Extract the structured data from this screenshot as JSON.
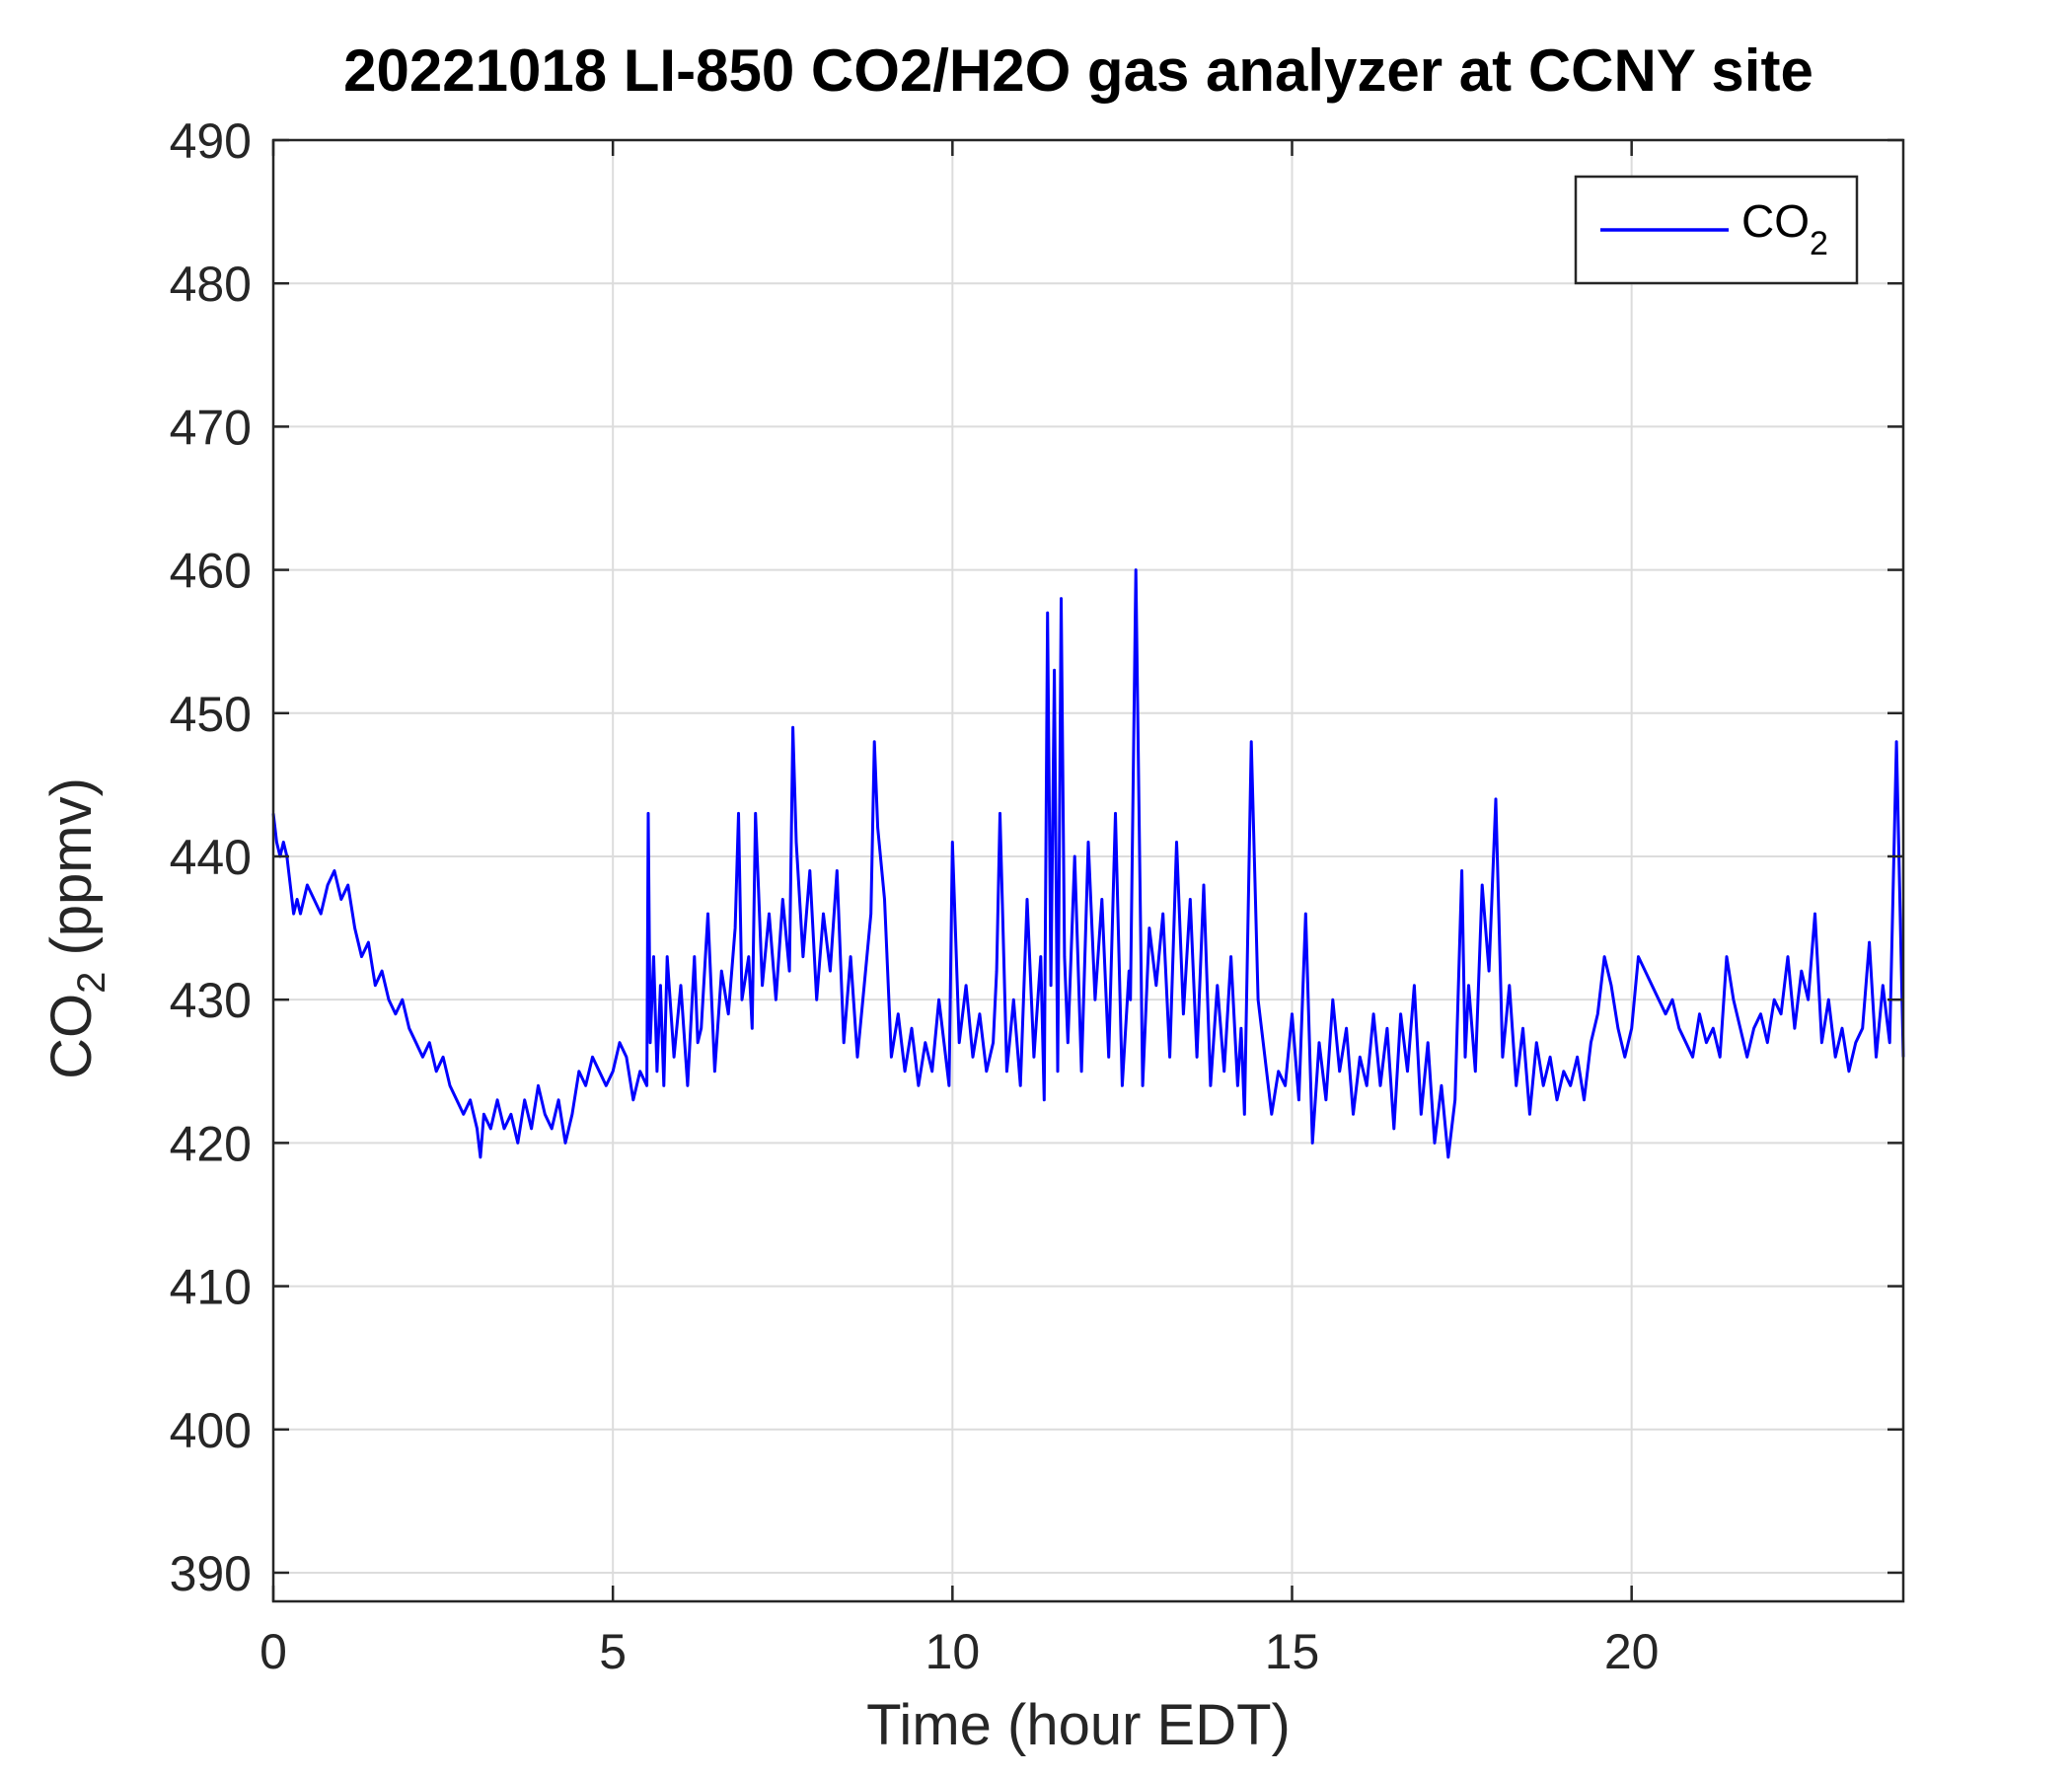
{
  "chart_data": {
    "type": "line",
    "title": "20221018 LI-850 CO2/H2O gas analyzer at CCNY site",
    "xlabel": "Time (hour EDT)",
    "ylabel": {
      "main": "CO",
      "subscript": "2",
      "suffix": " (ppmv)"
    },
    "xlim": [
      0,
      24
    ],
    "ylim": [
      388,
      490
    ],
    "xticks": [
      0,
      5,
      10,
      15,
      20
    ],
    "yticks": [
      390,
      400,
      410,
      420,
      430,
      440,
      450,
      460,
      470,
      480,
      490
    ],
    "grid": true,
    "legend": {
      "placement": "top-right",
      "entries": [
        {
          "name": "CO",
          "subscript": "2",
          "color": "#0000ff"
        }
      ]
    },
    "series": [
      {
        "name": "CO2",
        "color": "#0000ff",
        "x": [
          0,
          0.05,
          0.1,
          0.15,
          0.2,
          0.25,
          0.3,
          0.35,
          0.4,
          0.5,
          0.6,
          0.7,
          0.8,
          0.9,
          1.0,
          1.1,
          1.2,
          1.3,
          1.4,
          1.5,
          1.6,
          1.7,
          1.8,
          1.9,
          2.0,
          2.1,
          2.2,
          2.3,
          2.4,
          2.5,
          2.6,
          2.7,
          2.8,
          2.9,
          3.0,
          3.05,
          3.1,
          3.2,
          3.3,
          3.4,
          3.5,
          3.6,
          3.7,
          3.8,
          3.9,
          4.0,
          4.1,
          4.2,
          4.3,
          4.4,
          4.5,
          4.6,
          4.7,
          4.8,
          4.9,
          5.0,
          5.1,
          5.2,
          5.3,
          5.4,
          5.5,
          5.52,
          5.55,
          5.6,
          5.65,
          5.7,
          5.75,
          5.8,
          5.9,
          6.0,
          6.1,
          6.2,
          6.25,
          6.3,
          6.4,
          6.5,
          6.6,
          6.7,
          6.8,
          6.85,
          6.9,
          7.0,
          7.05,
          7.1,
          7.2,
          7.3,
          7.4,
          7.5,
          7.6,
          7.65,
          7.7,
          7.8,
          7.9,
          8.0,
          8.1,
          8.2,
          8.3,
          8.4,
          8.5,
          8.6,
          8.7,
          8.8,
          8.85,
          8.9,
          9.0,
          9.1,
          9.2,
          9.3,
          9.4,
          9.5,
          9.6,
          9.7,
          9.8,
          9.9,
          9.95,
          10.0,
          10.1,
          10.2,
          10.3,
          10.4,
          10.5,
          10.6,
          10.65,
          10.7,
          10.8,
          10.9,
          11.0,
          11.1,
          11.2,
          11.3,
          11.35,
          11.4,
          11.45,
          11.5,
          11.55,
          11.6,
          11.65,
          11.7,
          11.8,
          11.9,
          12.0,
          12.1,
          12.2,
          12.3,
          12.4,
          12.5,
          12.6,
          12.62,
          12.7,
          12.8,
          12.9,
          13.0,
          13.1,
          13.2,
          13.3,
          13.4,
          13.5,
          13.6,
          13.7,
          13.8,
          13.9,
          14.0,
          14.1,
          14.2,
          14.25,
          14.3,
          14.4,
          14.5,
          14.6,
          14.7,
          14.8,
          14.9,
          15.0,
          15.1,
          15.2,
          15.3,
          15.4,
          15.5,
          15.6,
          15.7,
          15.8,
          15.9,
          16.0,
          16.1,
          16.2,
          16.3,
          16.4,
          16.5,
          16.6,
          16.7,
          16.8,
          16.9,
          17.0,
          17.1,
          17.2,
          17.3,
          17.4,
          17.5,
          17.55,
          17.6,
          17.7,
          17.8,
          17.9,
          18.0,
          18.1,
          18.2,
          18.3,
          18.4,
          18.5,
          18.6,
          18.7,
          18.8,
          18.9,
          19.0,
          19.1,
          19.2,
          19.3,
          19.4,
          19.5,
          19.6,
          19.7,
          19.8,
          19.9,
          20.0,
          20.1,
          20.2,
          20.3,
          20.4,
          20.5,
          20.6,
          20.7,
          20.8,
          20.9,
          21.0,
          21.1,
          21.2,
          21.3,
          21.4,
          21.5,
          21.6,
          21.7,
          21.8,
          21.9,
          22.0,
          22.1,
          22.2,
          22.3,
          22.4,
          22.5,
          22.6,
          22.7,
          22.8,
          22.9,
          23.0,
          23.1,
          23.2,
          23.3,
          23.4,
          23.5,
          23.6,
          23.7,
          23.8,
          23.9,
          24.0
        ],
        "y": [
          443,
          441,
          440,
          441,
          440,
          438,
          436,
          437,
          436,
          438,
          437,
          436,
          438,
          439,
          437,
          438,
          435,
          433,
          434,
          431,
          432,
          430,
          429,
          430,
          428,
          427,
          426,
          427,
          425,
          426,
          424,
          423,
          422,
          423,
          421,
          419,
          422,
          421,
          423,
          421,
          422,
          420,
          423,
          421,
          424,
          422,
          421,
          423,
          420,
          422,
          425,
          424,
          426,
          425,
          424,
          425,
          427,
          426,
          423,
          425,
          424,
          443,
          427,
          433,
          425,
          431,
          424,
          433,
          426,
          431,
          424,
          433,
          427,
          428,
          436,
          425,
          432,
          429,
          435,
          443,
          430,
          433,
          428,
          443,
          431,
          436,
          430,
          437,
          432,
          449,
          441,
          433,
          439,
          430,
          436,
          432,
          439,
          427,
          433,
          426,
          431,
          436,
          448,
          442,
          437,
          426,
          429,
          425,
          428,
          424,
          427,
          425,
          430,
          426,
          424,
          441,
          427,
          431,
          426,
          429,
          425,
          427,
          432,
          443,
          425,
          430,
          424,
          437,
          426,
          433,
          423,
          457,
          431,
          453,
          425,
          458,
          433,
          427,
          440,
          425,
          441,
          430,
          437,
          426,
          443,
          424,
          432,
          430,
          460,
          424,
          435,
          431,
          436,
          426,
          441,
          429,
          437,
          426,
          438,
          424,
          431,
          425,
          433,
          424,
          428,
          422,
          448,
          430,
          426,
          422,
          425,
          424,
          429,
          423,
          436,
          420,
          427,
          423,
          430,
          425,
          428,
          422,
          426,
          424,
          429,
          424,
          428,
          421,
          429,
          425,
          431,
          422,
          427,
          420,
          424,
          419,
          423,
          439,
          426,
          431,
          425,
          438,
          432,
          444,
          426,
          431,
          424,
          428,
          422,
          427,
          424,
          426,
          423,
          425,
          424,
          426,
          423,
          427,
          429,
          433,
          431,
          428,
          426,
          428,
          433,
          432,
          431,
          430,
          429,
          430,
          428,
          427,
          426,
          429,
          427,
          428,
          426,
          433,
          430,
          428,
          426,
          428,
          429,
          427,
          430,
          429,
          433,
          428,
          432,
          430,
          436,
          427,
          430,
          426,
          428,
          425,
          427,
          428,
          434,
          426,
          431,
          427,
          448,
          426
        ]
      }
    ]
  }
}
